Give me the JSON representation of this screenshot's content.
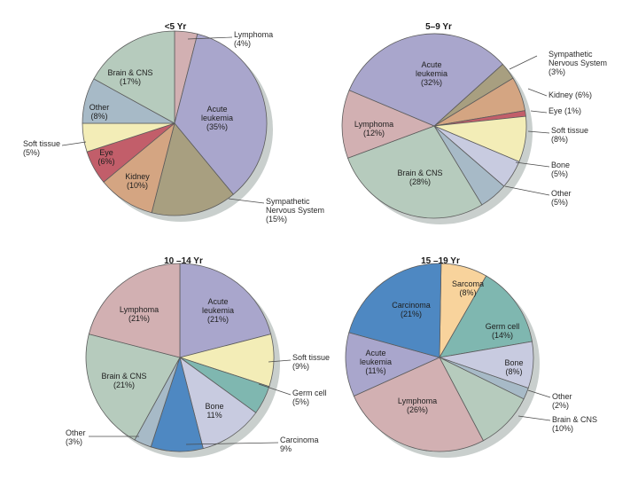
{
  "colors": {
    "Acute leukemia": "#a9a6cc",
    "Lymphoma": "#d2b0b2",
    "Brain & CNS": "#b6cbbd",
    "Other": "#a7bac7",
    "Soft tissue": "#f3edb7",
    "Eye": "#c25e6a",
    "Kidney": "#d4a582",
    "Sympathetic Nervous System": "#a89f80",
    "Bone": "#c8cbe0",
    "Germ cell": "#7fb7b0",
    "Carcinoma": "#4e88c2",
    "Sarcoma": "#f8d39c",
    "shadow": "#c9cfcd"
  },
  "chart_data": [
    {
      "type": "pie",
      "title": "<5 Yr",
      "slices": [
        {
          "name": "Lymphoma",
          "value": 4,
          "lines": [
            "Lymphoma",
            "(4%)"
          ]
        },
        {
          "name": "Acute leukemia",
          "value": 35,
          "lines": [
            "Acute",
            "leukemia",
            "(35%)"
          ]
        },
        {
          "name": "Sympathetic Nervous System",
          "value": 15,
          "lines": [
            "Sympathetic",
            "Nervous System",
            "(15%)"
          ]
        },
        {
          "name": "Kidney",
          "value": 10,
          "lines": [
            "Kidney",
            "(10%)"
          ]
        },
        {
          "name": "Eye",
          "value": 6,
          "lines": [
            "Eye",
            "(6%)"
          ]
        },
        {
          "name": "Soft tissue",
          "value": 5,
          "lines": [
            "Soft tissue",
            "(5%)"
          ]
        },
        {
          "name": "Other",
          "value": 8,
          "lines": [
            "Other",
            "(8%)"
          ]
        },
        {
          "name": "Brain & CNS",
          "value": 17,
          "lines": [
            "Brain & CNS",
            "(17%)"
          ]
        }
      ]
    },
    {
      "type": "pie",
      "title": "5–9 Yr",
      "slices": [
        {
          "name": "Sympathetic Nervous System",
          "value": 3,
          "lines": [
            "Sympathetic",
            "Nervous System",
            "(3%)"
          ]
        },
        {
          "name": "Kidney",
          "value": 6,
          "lines": [
            "Kidney (6%)"
          ]
        },
        {
          "name": "Eye",
          "value": 1,
          "lines": [
            "Eye (1%)"
          ]
        },
        {
          "name": "Soft tissue",
          "value": 8,
          "lines": [
            "Soft tissue",
            "(8%)"
          ]
        },
        {
          "name": "Bone",
          "value": 5,
          "lines": [
            "Bone",
            "(5%)"
          ]
        },
        {
          "name": "Other",
          "value": 5,
          "lines": [
            "Other",
            "(5%)"
          ]
        },
        {
          "name": "Brain & CNS",
          "value": 28,
          "lines": [
            "Brain & CNS",
            "(28%)"
          ]
        },
        {
          "name": "Lymphoma",
          "value": 12,
          "lines": [
            "Lymphoma",
            "(12%)"
          ]
        },
        {
          "name": "Acute leukemia",
          "value": 32,
          "lines": [
            "Acute",
            "leukemia",
            "(32%)"
          ]
        }
      ]
    },
    {
      "type": "pie",
      "title": "10 –14 Yr",
      "slices": [
        {
          "name": "Acute leukemia",
          "value": 21,
          "lines": [
            "Acute",
            "leukemia",
            "(21%)"
          ]
        },
        {
          "name": "Soft tissue",
          "value": 9,
          "lines": [
            "Soft tissue",
            "(9%)"
          ]
        },
        {
          "name": "Germ cell",
          "value": 5,
          "lines": [
            "Germ cell",
            "(5%)"
          ]
        },
        {
          "name": "Bone",
          "value": 11,
          "lines": [
            "Bone",
            "11%"
          ]
        },
        {
          "name": "Carcinoma",
          "value": 9,
          "lines": [
            "Carcinoma",
            "9%"
          ]
        },
        {
          "name": "Other",
          "value": 3,
          "lines": [
            "Other",
            "(3%)"
          ]
        },
        {
          "name": "Brain & CNS",
          "value": 21,
          "lines": [
            "Brain & CNS",
            "(21%)"
          ]
        },
        {
          "name": "Lymphoma",
          "value": 21,
          "lines": [
            "Lymphoma",
            "(21%)"
          ]
        }
      ]
    },
    {
      "type": "pie",
      "title": "15 –19 Yr",
      "slices": [
        {
          "name": "Sarcoma",
          "value": 8,
          "lines": [
            "Sarcoma",
            "(8%)"
          ]
        },
        {
          "name": "Germ cell",
          "value": 14,
          "lines": [
            "Germ cell",
            "(14%)"
          ]
        },
        {
          "name": "Bone",
          "value": 8,
          "lines": [
            "Bone",
            "(8%)"
          ]
        },
        {
          "name": "Other",
          "value": 2,
          "lines": [
            "Other",
            "(2%)"
          ]
        },
        {
          "name": "Brain & CNS",
          "value": 10,
          "lines": [
            "Brain & CNS",
            "(10%)"
          ]
        },
        {
          "name": "Lymphoma",
          "value": 26,
          "lines": [
            "Lymphoma",
            "(26%)"
          ]
        },
        {
          "name": "Acute leukemia",
          "value": 11,
          "lines": [
            "Acute",
            "leukemia",
            "(11%)"
          ]
        },
        {
          "name": "Carcinoma",
          "value": 21,
          "lines": [
            "Carcinoma",
            "(21%)"
          ]
        }
      ]
    }
  ]
}
